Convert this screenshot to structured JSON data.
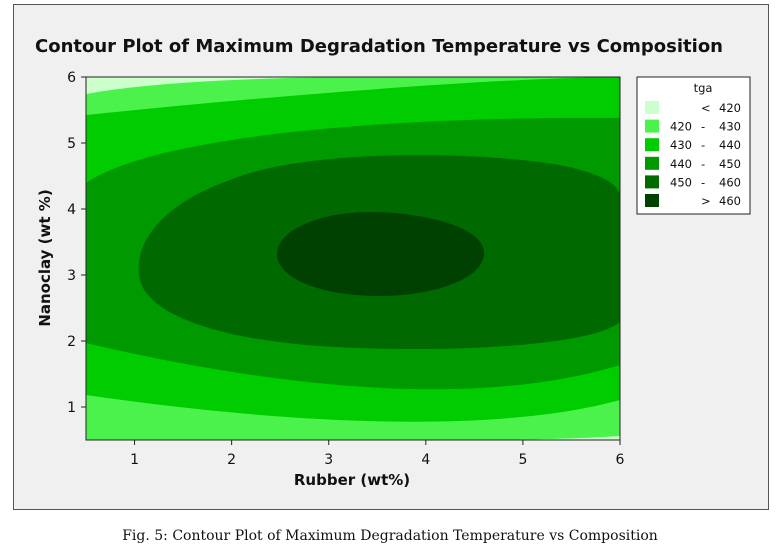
{
  "caption": "Fig. 5:  Contour Plot of Maximum Degradation Temperature vs Composition",
  "chart_data": {
    "type": "contour",
    "title": "Contour Plot of Maximum Degradation Temperature vs Composition",
    "xlabel": "Rubber (wt%)",
    "ylabel": "Nanoclay (wt %)",
    "xlim": [
      0.5,
      6
    ],
    "ylim": [
      0.5,
      6
    ],
    "xticks": [
      1,
      2,
      3,
      4,
      5,
      6
    ],
    "yticks": [
      1,
      2,
      3,
      4,
      5,
      6
    ],
    "x_ticks_text": [
      "1",
      "2",
      "3",
      "4",
      "5",
      "6"
    ],
    "y_ticks_text": [
      "1",
      "2",
      "3",
      "4",
      "5",
      "6"
    ],
    "grid": false,
    "response": "tga",
    "legend": {
      "title": "tga",
      "position": "right",
      "entries": [
        {
          "lo": "<",
          "hi": "420",
          "color": "#ccffcc"
        },
        {
          "lo": "420",
          "sep": "-",
          "hi": "430",
          "color": "#4cf24c"
        },
        {
          "lo": "430",
          "sep": "-",
          "hi": "440",
          "color": "#00cc00"
        },
        {
          "lo": "440",
          "sep": "-",
          "hi": "450",
          "color": "#009900"
        },
        {
          "lo": "450",
          "sep": "-",
          "hi": "460",
          "color": "#006900"
        },
        {
          "lo": ">",
          "hi": "460",
          "color": "#004000"
        }
      ]
    },
    "regions": [
      {
        "range": "< 420",
        "color": "#ccffcc"
      },
      {
        "range": "420 - 430",
        "color": "#4cf24c"
      },
      {
        "range": "430 - 440",
        "color": "#00cc00"
      },
      {
        "range": "440 - 450",
        "color": "#009900"
      },
      {
        "range": "450 - 460",
        "color": "#006900"
      },
      {
        "range": "> 460",
        "color": "#004000"
      }
    ],
    "peak": {
      "x": 3.5,
      "y": 3.3,
      "value": "> 460"
    }
  }
}
